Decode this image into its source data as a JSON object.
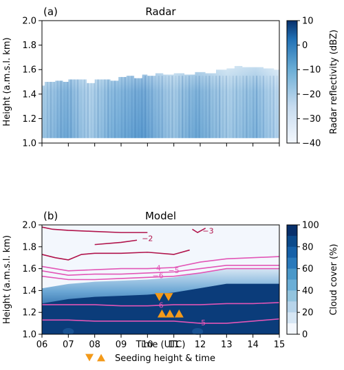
{
  "panels": {
    "a": {
      "tag": "(a)",
      "title": "Radar"
    },
    "b": {
      "tag": "(b)",
      "title": "Model"
    }
  },
  "legend": {
    "label": "Seeding height & time"
  },
  "colors": {
    "blues_low": "#f3f7fd",
    "blues_mid": "#6aa6d4",
    "blues_high": "#0b3c7a",
    "contour_cold": "#b0124a",
    "contour_warm": "#e255b6",
    "seeding": "#f39a1a"
  },
  "chart_data": [
    {
      "type": "heatmap",
      "title": "Radar",
      "panel_tag": "(a)",
      "xlabel": "",
      "ylabel": "Height (a.m.s.l. km)",
      "x_ticks": [
        "06",
        "07",
        "08",
        "09",
        "10",
        "11",
        "12",
        "13",
        "14",
        "15"
      ],
      "xlim": [
        6,
        15
      ],
      "y_ticks": [
        "1.0",
        "1.2",
        "1.4",
        "1.6",
        "1.8",
        "2.0"
      ],
      "ylim": [
        1.0,
        2.0
      ],
      "colorbar": {
        "label": "Radar reflectivity (dBZ)",
        "range": [
          -40,
          10
        ],
        "ticks": [
          "10",
          "0",
          "−10",
          "−20",
          "−30",
          "−40"
        ]
      },
      "echo_bottom_km": 1.04,
      "echo_top_km": {
        "x": [
          6.0,
          6.1,
          6.3,
          6.5,
          6.8,
          7.0,
          7.5,
          7.7,
          8.0,
          8.3,
          8.6,
          8.9,
          9.2,
          9.5,
          9.8,
          10.0,
          10.3,
          10.6,
          11.0,
          11.4,
          11.8,
          12.2,
          12.6,
          13.0,
          13.3,
          13.6,
          14.0,
          14.4,
          14.8,
          15.0
        ],
        "y": [
          1.47,
          1.5,
          1.5,
          1.51,
          1.5,
          1.52,
          1.52,
          1.49,
          1.52,
          1.52,
          1.51,
          1.54,
          1.55,
          1.53,
          1.56,
          1.55,
          1.57,
          1.56,
          1.57,
          1.56,
          1.58,
          1.57,
          1.6,
          1.61,
          1.63,
          1.62,
          1.62,
          1.61,
          1.6,
          1.57
        ]
      }
    },
    {
      "type": "heatmap",
      "title": "Model",
      "panel_tag": "(b)",
      "xlabel": "Time (UTC)",
      "ylabel": "Height (a.m.s.l. km)",
      "x_ticks": [
        "06",
        "07",
        "08",
        "09",
        "10",
        "11",
        "12",
        "13",
        "14",
        "15"
      ],
      "xlim": [
        6,
        15
      ],
      "y_ticks": [
        "1.0",
        "1.2",
        "1.4",
        "1.6",
        "1.8",
        "2.0"
      ],
      "ylim": [
        1.0,
        2.0
      ],
      "colorbar": {
        "label": "Cloud cover (%)",
        "range": [
          0,
          100
        ],
        "ticks": [
          "100",
          "80",
          "60",
          "40",
          "20",
          "0"
        ]
      },
      "cloud_top_km": {
        "x": [
          6,
          7,
          8,
          9,
          10,
          11,
          12,
          13,
          14,
          15
        ],
        "y": [
          1.42,
          1.46,
          1.48,
          1.49,
          1.5,
          1.52,
          1.56,
          1.6,
          1.6,
          1.6
        ]
      },
      "contours": [
        {
          "level": "−3",
          "color": "cold",
          "x": [
            11.7,
            11.9,
            12.2
          ],
          "y": [
            1.96,
            1.93,
            1.97
          ],
          "label_at": [
            12.3,
            1.94
          ]
        },
        {
          "level": "−2",
          "color": "cold",
          "x": [
            6.0,
            6.4,
            7.0,
            8.0,
            9.0,
            10.0
          ],
          "y": [
            1.98,
            1.96,
            1.95,
            1.94,
            1.93,
            1.93
          ]
        },
        {
          "level": "−2",
          "color": "cold",
          "x": [
            8.0,
            9.0,
            9.6
          ],
          "y": [
            1.82,
            1.84,
            1.86
          ],
          "label_at": [
            10.0,
            1.87
          ]
        },
        {
          "level": "",
          "color": "cold",
          "x": [
            6.0,
            6.5,
            7.0,
            7.5,
            8.0,
            9.0,
            10.0,
            11.0,
            11.6
          ],
          "y": [
            1.73,
            1.7,
            1.68,
            1.73,
            1.74,
            1.74,
            1.75,
            1.73,
            1.77
          ]
        },
        {
          "level": "−4",
          "color": "warm",
          "x": [
            6.0,
            7.0,
            8.0,
            9.0,
            10.0,
            11.0,
            12.0,
            13.0,
            14.0,
            15.0
          ],
          "y": [
            1.62,
            1.58,
            1.59,
            1.6,
            1.6,
            1.61,
            1.66,
            1.69,
            1.7,
            1.71
          ],
          "label_at": [
            10.3,
            1.6
          ]
        },
        {
          "level": "−5",
          "color": "warm",
          "x": [
            6.0,
            7.0,
            8.0,
            9.0,
            10.0,
            11.0,
            12.0,
            13.0,
            14.0,
            15.0
          ],
          "y": [
            1.58,
            1.54,
            1.55,
            1.55,
            1.56,
            1.57,
            1.6,
            1.63,
            1.63,
            1.63
          ],
          "label_at": [
            11.0,
            1.58
          ]
        },
        {
          "level": "−6",
          "color": "warm",
          "x": [
            6.0,
            7.0,
            8.0,
            9.0,
            10.0,
            11.0,
            12.0,
            13.0,
            14.0,
            15.0
          ],
          "y": [
            1.53,
            1.5,
            1.5,
            1.51,
            1.52,
            1.53,
            1.56,
            1.6,
            1.6,
            1.6
          ],
          "label_at": [
            10.4,
            1.53
          ]
        },
        {
          "level": "−6",
          "color": "warm",
          "x": [
            6.0,
            7.0,
            8.0,
            9.0,
            10.0,
            11.0,
            12.0,
            13.0,
            14.0,
            15.0
          ],
          "y": [
            1.27,
            1.27,
            1.27,
            1.26,
            1.26,
            1.27,
            1.27,
            1.28,
            1.28,
            1.29
          ],
          "label_at": [
            10.4,
            1.26
          ]
        },
        {
          "level": "−5",
          "color": "warm",
          "x": [
            6.0,
            7.0,
            8.0,
            9.0,
            10.0,
            11.0,
            12.0,
            13.0,
            14.0,
            15.0
          ],
          "y": [
            1.13,
            1.13,
            1.12,
            1.12,
            1.12,
            1.12,
            1.1,
            1.1,
            1.12,
            1.14
          ],
          "label_at": [
            12.0,
            1.1
          ]
        }
      ],
      "seeding_events": [
        {
          "x": 10.45,
          "y": 1.34,
          "marker": "down"
        },
        {
          "x": 10.8,
          "y": 1.34,
          "marker": "down"
        },
        {
          "x": 10.55,
          "y": 1.19,
          "marker": "up"
        },
        {
          "x": 10.85,
          "y": 1.19,
          "marker": "up"
        },
        {
          "x": 11.2,
          "y": 1.19,
          "marker": "up"
        }
      ]
    }
  ]
}
